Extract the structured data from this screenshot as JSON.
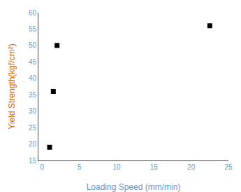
{
  "chart_data": {
    "type": "scatter",
    "x": [
      1.0,
      1.5,
      2.0,
      22.5
    ],
    "values": [
      19.0,
      36.0,
      50.0,
      56.0
    ],
    "color": "black",
    "marker": "square",
    "xlabel": "Loading Speed (mm/min)",
    "ylabel": "Yield Strength(kgf/cm²)",
    "xlim": [
      -0.5,
      25
    ],
    "ylim": [
      15,
      60
    ],
    "xticks": [
      0,
      5,
      10,
      15,
      20,
      25
    ],
    "yticks": [
      15,
      20,
      25,
      30,
      35,
      40,
      45,
      50,
      55,
      60
    ],
    "grid": false
  }
}
